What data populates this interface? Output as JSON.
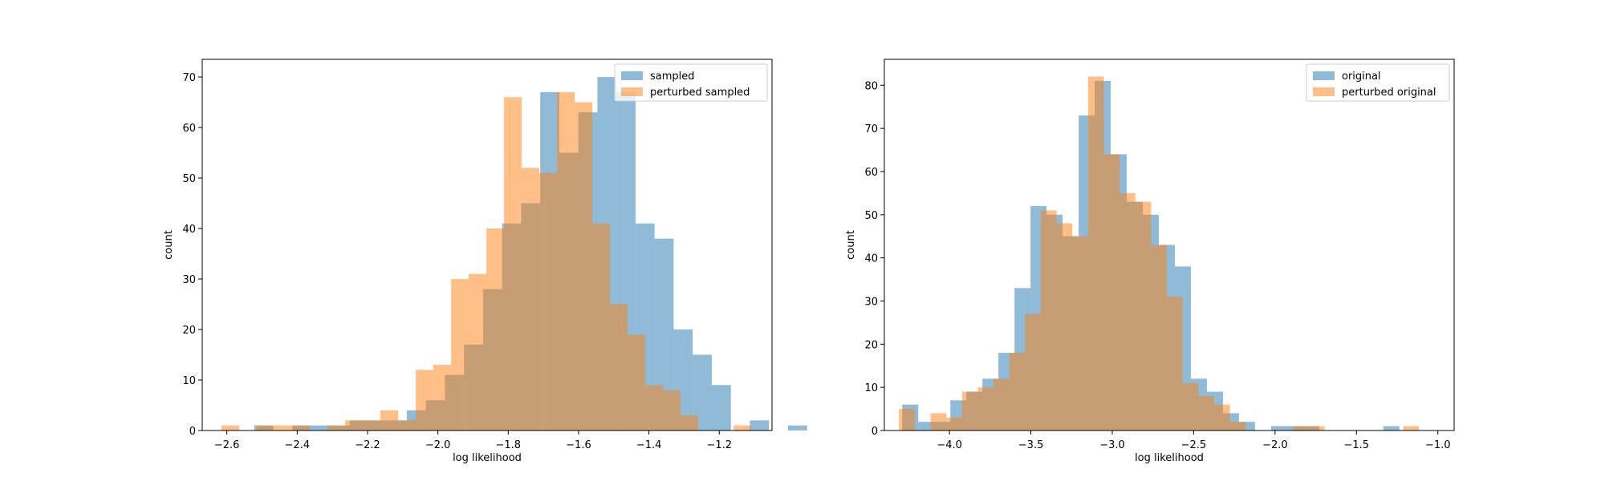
{
  "colors": {
    "series1": "#1f77b4",
    "series2": "#ff7f0e",
    "axes": "#000000",
    "background": "#ffffff"
  },
  "chart_data": [
    {
      "type": "histogram",
      "xlabel": "log likelihood",
      "ylabel": "count",
      "xlim": [
        -2.67,
        -1.05
      ],
      "ylim": [
        0,
        73.5
      ],
      "xticks": [
        -2.6,
        -2.4,
        -2.2,
        -2.0,
        -1.8,
        -1.6,
        -1.4,
        -1.2
      ],
      "xtick_labels": [
        "−2.6",
        "−2.4",
        "−2.2",
        "−2.0",
        "−1.8",
        "−1.6",
        "−1.4",
        "−1.2"
      ],
      "yticks": [
        0,
        10,
        20,
        30,
        40,
        50,
        60,
        70
      ],
      "ytick_labels": [
        "0",
        "10",
        "20",
        "30",
        "40",
        "50",
        "60",
        "70"
      ],
      "legend_position": "top-right",
      "opacity": 0.5,
      "series": [
        {
          "name": "sampled",
          "color": "#1f77b4",
          "bin_start": -2.522,
          "bin_width": 0.0542,
          "counts": [
            1,
            0,
            1,
            1,
            1,
            2,
            2,
            2,
            4,
            6,
            11,
            17,
            28,
            41,
            45,
            67,
            55,
            63,
            70,
            67,
            41,
            38,
            20,
            15,
            9,
            0,
            2,
            0,
            1
          ]
        },
        {
          "name": "perturbed sampled",
          "color": "#ff7f0e",
          "bin_start": -2.615,
          "bin_width": 0.0502,
          "counts": [
            1,
            0,
            1,
            1,
            1,
            0,
            1,
            2,
            2,
            4,
            2,
            12,
            13,
            30,
            31,
            40,
            66,
            52,
            51,
            67,
            65,
            41,
            25,
            19,
            9,
            8,
            3,
            0,
            0,
            1
          ]
        }
      ]
    },
    {
      "type": "histogram",
      "xlabel": "log likelihood",
      "ylabel": "count",
      "xlim": [
        -4.4,
        -0.9
      ],
      "ylim": [
        0,
        86
      ],
      "xticks": [
        -4.0,
        -3.5,
        -3.0,
        -2.5,
        -2.0,
        -1.5,
        -1.0
      ],
      "xtick_labels": [
        "−4.0",
        "−3.5",
        "−3.0",
        "−2.5",
        "−2.0",
        "−1.5",
        "−1.0"
      ],
      "yticks": [
        0,
        10,
        20,
        30,
        40,
        50,
        60,
        70,
        80
      ],
      "ytick_labels": [
        "0",
        "10",
        "20",
        "30",
        "40",
        "50",
        "60",
        "70",
        "80"
      ],
      "legend_position": "top-right",
      "opacity": 0.5,
      "series": [
        {
          "name": "original",
          "color": "#1f77b4",
          "bin_start": -4.29,
          "bin_width": 0.0985,
          "counts": [
            6,
            2,
            2,
            7,
            9,
            12,
            18,
            33,
            52,
            50,
            45,
            73,
            81,
            64,
            53,
            50,
            43,
            38,
            12,
            9,
            4,
            2,
            0,
            1,
            1,
            1,
            0,
            0,
            0,
            0,
            1
          ]
        },
        {
          "name": "perturbed original",
          "color": "#ff7f0e",
          "bin_start": -4.31,
          "bin_width": 0.0968,
          "counts": [
            5,
            0,
            4,
            3,
            9,
            10,
            12,
            18,
            27,
            51,
            48,
            45,
            82,
            64,
            55,
            53,
            43,
            31,
            11,
            8,
            6,
            2,
            0,
            0,
            0,
            1,
            1,
            0,
            0,
            0,
            0,
            0,
            1
          ]
        }
      ]
    }
  ]
}
